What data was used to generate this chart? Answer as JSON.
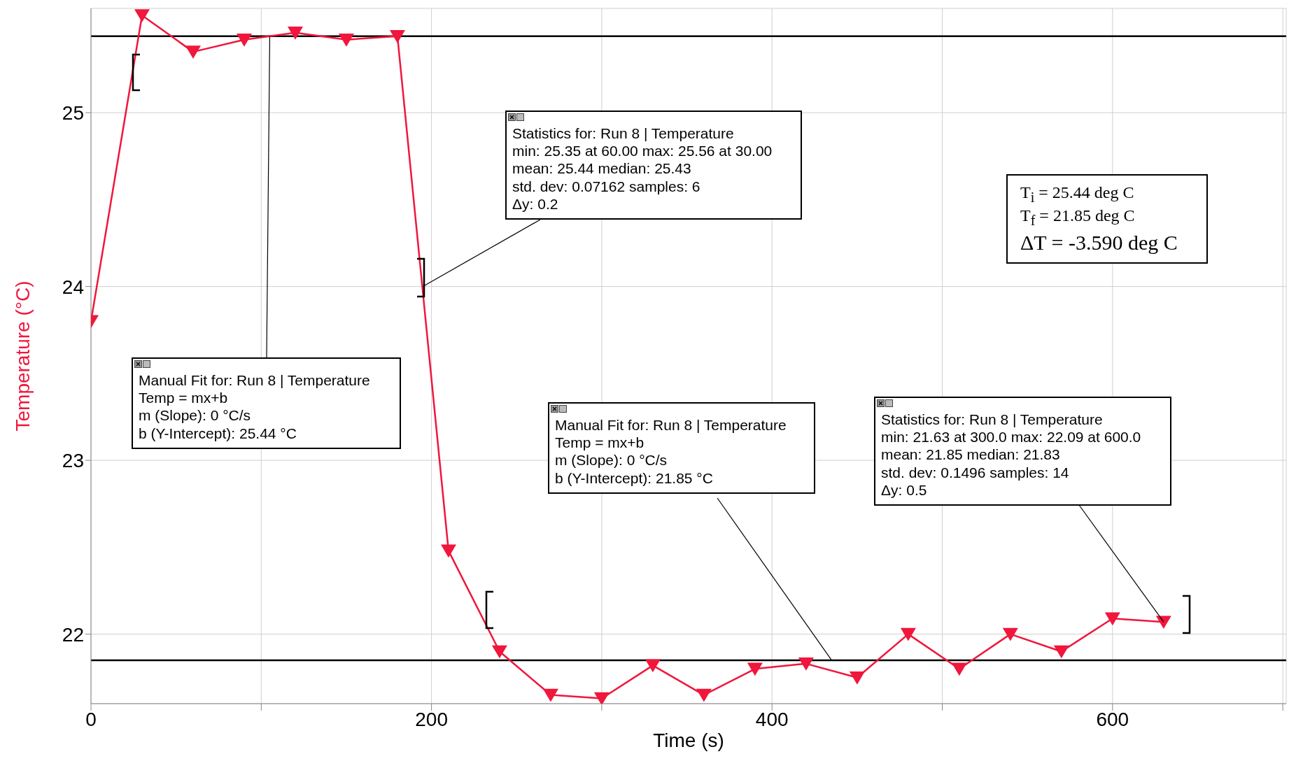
{
  "chart_data": {
    "type": "line",
    "xlabel": "Time (s)",
    "ylabel": "Temperature (°C)",
    "x": [
      0,
      30,
      60,
      90,
      120,
      150,
      180,
      210,
      240,
      270,
      300,
      330,
      360,
      390,
      420,
      450,
      480,
      510,
      540,
      570,
      600,
      630
    ],
    "series": [
      {
        "color": "#f0163c",
        "values": [
          23.8,
          25.56,
          25.35,
          25.42,
          25.46,
          25.42,
          25.44,
          22.48,
          21.9,
          21.65,
          21.63,
          21.82,
          21.65,
          21.8,
          21.83,
          21.75,
          22.0,
          21.8,
          22.0,
          21.9,
          22.09,
          22.07
        ]
      }
    ],
    "xlim": [
      0,
      702
    ],
    "xticks": [
      0,
      {
        "value": 100,
        "label": null
      },
      200,
      {
        "value": 300,
        "label": null
      },
      400,
      {
        "value": 500,
        "label": null
      },
      600,
      {
        "value": 700,
        "label": null
      }
    ],
    "ylim": [
      21.6,
      25.6
    ],
    "yticks": [
      22,
      23,
      24,
      25
    ],
    "grid": true,
    "marker": "triangle",
    "line_style": "solid",
    "legend": false,
    "ref_lines": [
      {
        "axis": "y",
        "value": 25.44,
        "color": "#000000"
      },
      {
        "axis": "y",
        "value": 21.85,
        "color": "#000000"
      }
    ],
    "annotations": [
      {
        "text": "Statistics for: Run 8 | Temperature\nmin: 25.35 at 60.00 max: 25.56 at 30.00\nmean: 25.44 median: 25.43\nstd. dev: 0.07162 samples: 6\nΔy: 0.2",
        "x": 195,
        "y": 24.0
      },
      {
        "text": "Manual Fit for: Run 8 | Temperature\nTemp = mx+b\nm (Slope): 0 °C/s\nb (Y-Intercept): 25.44 °C",
        "x": 105,
        "y": 25.44
      },
      {
        "text": "Manual Fit for: Run 8 | Temperature\nTemp = mx+b\nm (Slope): 0 °C/s\nb (Y-Intercept): 21.85 °C",
        "x": 435,
        "y": 21.85
      },
      {
        "text": "Statistics for: Run 8 | Temperature\nmin: 21.63 at 300.0 max: 22.09 at 600.0\nmean: 21.85 median: 21.83\nstd. dev: 0.1496 samples: 14\nΔy: 0.5",
        "x": 630,
        "y": 22.07
      },
      "T$_{i}$ = 25.44 deg C\nT$_{f}$ = 21.85 deg C\nΔT = -3.590 deg C"
    ]
  }
}
